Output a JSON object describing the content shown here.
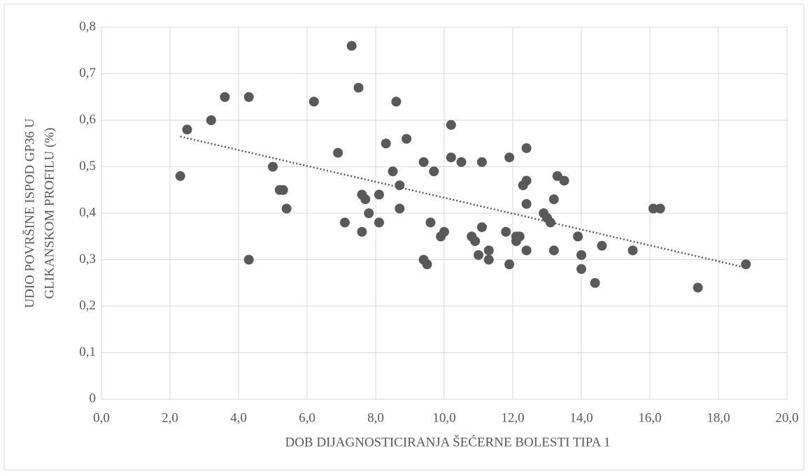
{
  "chart_data": {
    "type": "scatter",
    "xlabel": "DOB DIJAGNOSTICIRANJA ŠEĆERNE BOLESTI TIPA 1",
    "ylabel": [
      "UDIO POVRŠINE ISPOD GP36 U",
      "GLIKANSKOM PROFILU (%)"
    ],
    "xlim": [
      0,
      20
    ],
    "ylim": [
      0,
      0.8
    ],
    "xticks": [
      {
        "value": 0,
        "label": "0,0"
      },
      {
        "value": 2,
        "label": "2,0"
      },
      {
        "value": 4,
        "label": "4,0"
      },
      {
        "value": 6,
        "label": "6,0"
      },
      {
        "value": 8,
        "label": "8,0"
      },
      {
        "value": 10,
        "label": "10,0"
      },
      {
        "value": 12,
        "label": "12,0"
      },
      {
        "value": 14,
        "label": "14,0"
      },
      {
        "value": 16,
        "label": "16,0"
      },
      {
        "value": 18,
        "label": "18,0"
      },
      {
        "value": 20,
        "label": "20,0"
      }
    ],
    "yticks": [
      0,
      {
        "value": 0.1,
        "label": "0,1"
      },
      {
        "value": 0.2,
        "label": "0,2"
      },
      {
        "value": 0.3,
        "label": "0,3"
      },
      {
        "value": 0.4,
        "label": "0,4"
      },
      {
        "value": 0.5,
        "label": "0,5"
      },
      {
        "value": 0.6,
        "label": "0,6"
      },
      {
        "value": 0.7,
        "label": "0,7"
      },
      {
        "value": 0.8,
        "label": "0,8"
      }
    ],
    "grid": true,
    "color": "#595959",
    "x": [
      2.3,
      2.5,
      3.2,
      3.6,
      4.3,
      4.3,
      5.0,
      5.2,
      5.3,
      5.4,
      6.2,
      6.9,
      7.1,
      7.3,
      7.5,
      7.6,
      7.6,
      7.7,
      7.8,
      8.1,
      8.1,
      8.3,
      8.5,
      8.6,
      8.7,
      8.7,
      8.9,
      9.4,
      9.4,
      9.5,
      9.6,
      9.7,
      9.9,
      10.0,
      10.2,
      10.2,
      10.5,
      10.8,
      10.9,
      11.0,
      11.1,
      11.1,
      11.3,
      11.3,
      11.8,
      11.9,
      11.9,
      12.1,
      12.1,
      12.2,
      12.3,
      12.4,
      12.4,
      12.4,
      12.4,
      12.9,
      13.0,
      13.1,
      13.2,
      13.2,
      13.3,
      13.5,
      13.9,
      14.0,
      14.0,
      14.4,
      14.6,
      15.5,
      16.1,
      16.3,
      17.4,
      18.8
    ],
    "y": [
      0.48,
      0.58,
      0.6,
      0.65,
      0.3,
      0.65,
      0.5,
      0.45,
      0.45,
      0.41,
      0.64,
      0.53,
      0.38,
      0.76,
      0.67,
      0.36,
      0.44,
      0.43,
      0.4,
      0.44,
      0.38,
      0.55,
      0.49,
      0.64,
      0.46,
      0.41,
      0.56,
      0.51,
      0.3,
      0.29,
      0.38,
      0.49,
      0.35,
      0.36,
      0.59,
      0.52,
      0.51,
      0.35,
      0.34,
      0.31,
      0.37,
      0.51,
      0.32,
      0.3,
      0.36,
      0.52,
      0.29,
      0.35,
      0.34,
      0.35,
      0.46,
      0.54,
      0.32,
      0.47,
      0.42,
      0.4,
      0.39,
      0.38,
      0.43,
      0.32,
      0.48,
      0.47,
      0.35,
      0.31,
      0.28,
      0.25,
      0.33,
      0.32,
      0.41,
      0.41,
      0.24,
      0.29
    ],
    "trendline": {
      "x": [
        2.3,
        18.8
      ],
      "y": [
        0.565,
        0.283
      ],
      "color": "#595959"
    }
  }
}
